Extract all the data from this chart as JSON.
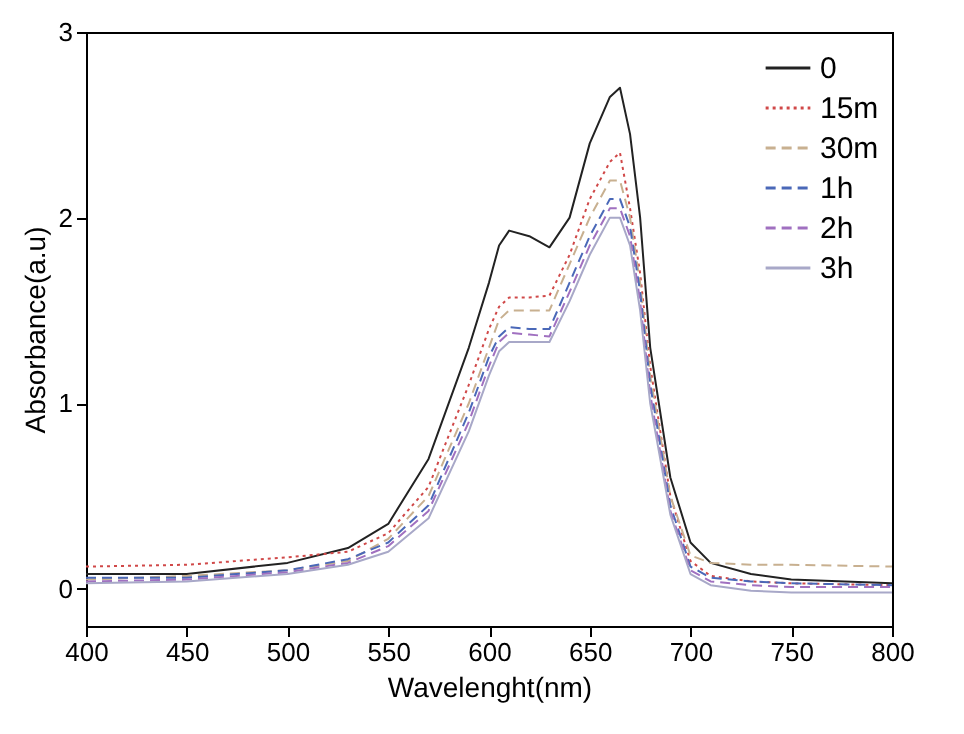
{
  "chart_data": {
    "type": "line",
    "xlabel": "Wavelenght(nm)",
    "ylabel": "Absorbance(a.u)",
    "x": [
      400,
      450,
      500,
      530,
      550,
      570,
      590,
      600,
      605,
      610,
      620,
      630,
      640,
      650,
      660,
      665,
      670,
      675,
      680,
      690,
      700,
      710,
      730,
      750,
      800
    ],
    "series": [
      {
        "name": "0",
        "color": "#222222",
        "line_style": "solid",
        "values": [
          0.08,
          0.08,
          0.14,
          0.22,
          0.35,
          0.7,
          1.3,
          1.65,
          1.85,
          1.93,
          1.9,
          1.84,
          2.0,
          2.4,
          2.65,
          2.7,
          2.45,
          2.0,
          1.3,
          0.6,
          0.25,
          0.14,
          0.08,
          0.05,
          0.03
        ]
      },
      {
        "name": "15m",
        "color": "#d04848",
        "line_style": "dotted",
        "values": [
          0.12,
          0.13,
          0.17,
          0.2,
          0.3,
          0.55,
          1.1,
          1.4,
          1.52,
          1.57,
          1.57,
          1.58,
          1.8,
          2.1,
          2.3,
          2.35,
          2.05,
          1.7,
          1.2,
          0.5,
          0.15,
          0.07,
          0.04,
          0.03,
          0.02
        ]
      },
      {
        "name": "30m",
        "color": "#c8b090",
        "line_style": "dashed",
        "values": [
          0.05,
          0.07,
          0.1,
          0.15,
          0.27,
          0.5,
          1.0,
          1.3,
          1.45,
          1.5,
          1.5,
          1.5,
          1.75,
          2.0,
          2.2,
          2.2,
          2.0,
          1.65,
          1.15,
          0.5,
          0.18,
          0.14,
          0.13,
          0.13,
          0.12
        ]
      },
      {
        "name": "1h",
        "color": "#4a68b8",
        "line_style": "dashed",
        "values": [
          0.06,
          0.06,
          0.1,
          0.16,
          0.25,
          0.45,
          0.95,
          1.25,
          1.36,
          1.41,
          1.4,
          1.4,
          1.65,
          1.9,
          2.1,
          2.1,
          1.95,
          1.6,
          1.1,
          0.45,
          0.12,
          0.06,
          0.04,
          0.03,
          0.02
        ]
      },
      {
        "name": "2h",
        "color": "#a070c0",
        "line_style": "dashed",
        "values": [
          0.04,
          0.05,
          0.09,
          0.14,
          0.23,
          0.42,
          0.9,
          1.2,
          1.33,
          1.38,
          1.37,
          1.36,
          1.6,
          1.85,
          2.05,
          2.05,
          1.9,
          1.55,
          1.05,
          0.42,
          0.1,
          0.04,
          0.02,
          0.01,
          0.01
        ]
      },
      {
        "name": "3h",
        "color": "#a8a8c8",
        "line_style": "solid",
        "values": [
          0.03,
          0.04,
          0.08,
          0.13,
          0.2,
          0.38,
          0.85,
          1.15,
          1.28,
          1.33,
          1.33,
          1.33,
          1.55,
          1.8,
          2.0,
          2.0,
          1.85,
          1.5,
          1.0,
          0.4,
          0.08,
          0.02,
          -0.01,
          -0.02,
          -0.02
        ]
      }
    ],
    "xlim": [
      400,
      800
    ],
    "xticks": [
      400,
      450,
      500,
      550,
      600,
      650,
      700,
      750,
      800
    ],
    "ylim": [
      -0.2,
      3
    ],
    "yticks": [
      0,
      1,
      2,
      3
    ],
    "grid": false,
    "legend": "top right"
  }
}
